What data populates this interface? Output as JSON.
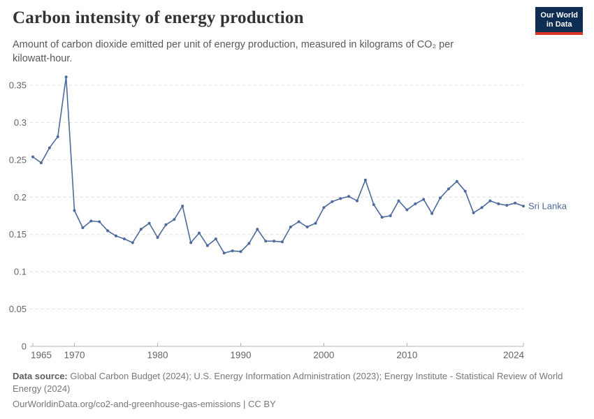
{
  "header": {
    "title": "Carbon intensity of energy production",
    "subtitle": "Amount of carbon dioxide emitted per unit of energy production, measured in kilograms of CO₂ per kilowatt-hour.",
    "logo": {
      "line1": "Our World",
      "line2": "in Data"
    }
  },
  "chart_data": {
    "type": "line",
    "title": "Carbon intensity of energy production",
    "unit": "kilograms of CO2 per kilowatt-hour",
    "grid": "horizontal-dashed",
    "legend_position": "end-of-line-label",
    "xlim": [
      1965,
      2024
    ],
    "ylim": [
      0,
      0.35
    ],
    "x_ticks": [
      1965,
      1970,
      1980,
      1990,
      2000,
      2010,
      2024
    ],
    "y_tick_labels": [
      "0",
      "0.05",
      "0.1",
      "0.15",
      "0.2",
      "0.25",
      "0.3",
      "0.35"
    ],
    "series": [
      {
        "name": "Sri Lanka",
        "color": "#4C6A9C",
        "x": [
          1965,
          1966,
          1967,
          1968,
          1969,
          1970,
          1971,
          1972,
          1973,
          1974,
          1975,
          1976,
          1977,
          1978,
          1979,
          1980,
          1981,
          1982,
          1983,
          1984,
          1985,
          1986,
          1987,
          1988,
          1989,
          1990,
          1991,
          1992,
          1993,
          1994,
          1995,
          1996,
          1997,
          1998,
          1999,
          2000,
          2001,
          2002,
          2003,
          2004,
          2005,
          2006,
          2007,
          2008,
          2009,
          2010,
          2011,
          2012,
          2013,
          2014,
          2015,
          2016,
          2017,
          2018,
          2019,
          2020,
          2021,
          2022,
          2023,
          2024
        ],
        "values": [
          0.254,
          0.246,
          0.266,
          0.281,
          0.361,
          0.182,
          0.159,
          0.168,
          0.167,
          0.155,
          0.148,
          0.144,
          0.139,
          0.157,
          0.165,
          0.146,
          0.163,
          0.17,
          0.188,
          0.139,
          0.152,
          0.135,
          0.144,
          0.125,
          0.128,
          0.127,
          0.138,
          0.157,
          0.141,
          0.141,
          0.14,
          0.16,
          0.167,
          0.16,
          0.165,
          0.186,
          0.194,
          0.198,
          0.201,
          0.195,
          0.223,
          0.19,
          0.173,
          0.175,
          0.195,
          0.183,
          0.191,
          0.197,
          0.178,
          0.199,
          0.211,
          0.221,
          0.208,
          0.179,
          0.186,
          0.195,
          0.191,
          0.189,
          0.192,
          0.188
        ]
      }
    ],
    "end_label": "Sri Lanka"
  },
  "footer": {
    "data_source_label": "Data source:",
    "data_source_text": "Global Carbon Budget (2024); U.S. Energy Information Administration (2023); Energy Institute - Statistical Review of World Energy (2024)",
    "url_line": "OurWorldinData.org/co2-and-greenhouse-gas-emissions | CC BY"
  },
  "colors": {
    "line": "#4C6A9C",
    "grid": "#dddddd",
    "axis": "#b3b3b3",
    "tick_label": "#666666",
    "title": "#333333",
    "subtitle": "#595959",
    "footer": "#787878",
    "logo_bg": "#0d2e52",
    "logo_stripe": "#d8352a"
  }
}
